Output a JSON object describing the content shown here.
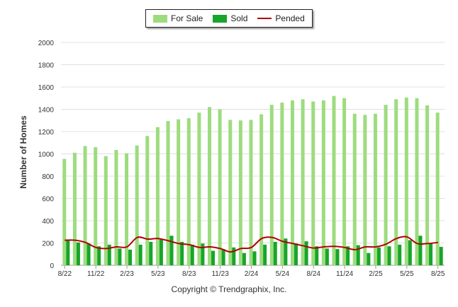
{
  "chart_data": {
    "type": "bar",
    "ylabel": "Number of Homes",
    "ylim": [
      0,
      2000
    ],
    "yticks": [
      "0",
      "200",
      "400",
      "600",
      "800",
      "1000",
      "1200",
      "1400",
      "1600",
      "1800",
      "2000"
    ],
    "xticks": [
      {
        "label": "8/22",
        "index": 0
      },
      {
        "label": "11/22",
        "index": 3
      },
      {
        "label": "2/23",
        "index": 6
      },
      {
        "label": "5/23",
        "index": 9
      },
      {
        "label": "8/23",
        "index": 12
      },
      {
        "label": "11/23",
        "index": 15
      },
      {
        "label": "2/24",
        "index": 18
      },
      {
        "label": "5/24",
        "index": 21
      },
      {
        "label": "8/24",
        "index": 24
      },
      {
        "label": "11/24",
        "index": 27
      },
      {
        "label": "2/25",
        "index": 30
      },
      {
        "label": "5/25",
        "index": 33
      },
      {
        "label": "8/25",
        "index": 36
      }
    ],
    "series": [
      {
        "name": "For Sale",
        "kind": "bar",
        "color": "#9ddc7e",
        "values": [
          955,
          1010,
          1070,
          1060,
          980,
          1035,
          1005,
          1075,
          1160,
          1240,
          1295,
          1310,
          1320,
          1370,
          1420,
          1400,
          1305,
          1300,
          1305,
          1355,
          1440,
          1460,
          1480,
          1490,
          1470,
          1480,
          1520,
          1500,
          1360,
          1350,
          1360,
          1440,
          1490,
          1505,
          1500,
          1435,
          1370
        ]
      },
      {
        "name": "Sold",
        "kind": "bar",
        "color": "#17a52a",
        "values": [
          225,
          205,
          195,
          170,
          185,
          150,
          140,
          185,
          210,
          230,
          265,
          210,
          185,
          195,
          130,
          145,
          160,
          110,
          125,
          185,
          210,
          240,
          195,
          215,
          170,
          150,
          145,
          170,
          180,
          110,
          160,
          170,
          185,
          225,
          265,
          195,
          165
        ]
      },
      {
        "name": "Pended",
        "kind": "line",
        "color": "#b30000",
        "values": [
          225,
          225,
          205,
          160,
          150,
          165,
          165,
          250,
          235,
          240,
          220,
          195,
          185,
          160,
          165,
          150,
          120,
          150,
          160,
          240,
          250,
          215,
          195,
          175,
          155,
          165,
          170,
          160,
          140,
          165,
          165,
          190,
          240,
          255,
          195,
          195,
          205
        ]
      }
    ]
  },
  "copyright": "Copyright © Trendgraphix, Inc."
}
